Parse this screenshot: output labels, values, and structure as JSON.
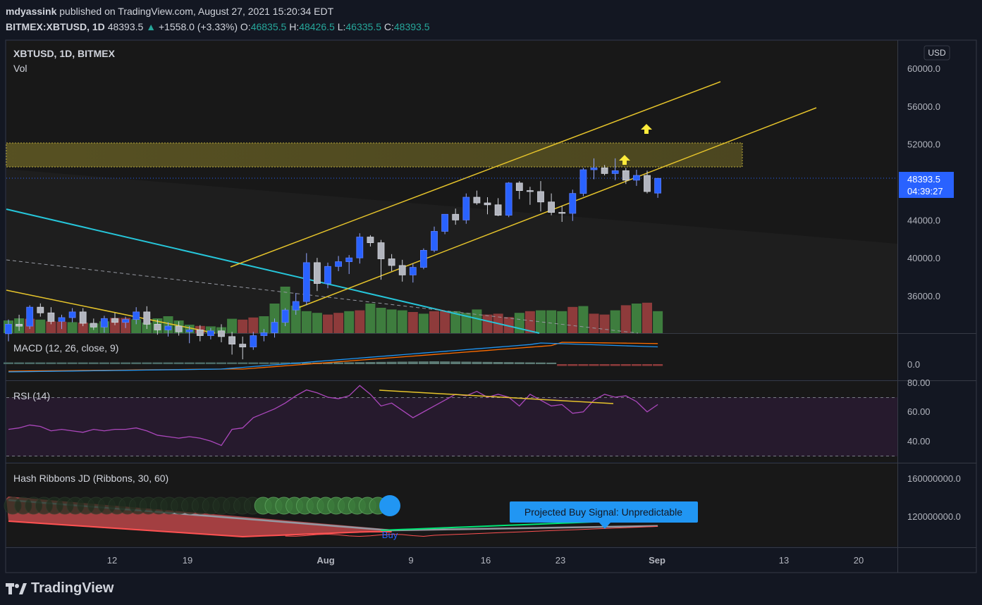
{
  "header": {
    "author": "mdyassink",
    "published": "published on TradingView.com, August 27, 2021 15:20:34 EDT",
    "symbol": "BITMEX:XBTUSD, 1D",
    "last": "48393.5",
    "change": "+1558.0 (+3.33%)",
    "o_label": "O:",
    "o": "46835.5",
    "h_label": "H:",
    "h": "48426.5",
    "l_label": "L:",
    "l": "46335.5",
    "c_label": "C:",
    "c": "48393.5"
  },
  "panes": {
    "main": {
      "title": "XBTUSD, 1D, BITMEX",
      "sub": "Vol"
    },
    "macd": {
      "title": "MACD (12, 26, close, 9)"
    },
    "rsi": {
      "title": "RSI (14)"
    },
    "hash": {
      "title": "Hash Ribbons JD (Ribbons, 30, 60)"
    }
  },
  "currency": "USD",
  "price_label": {
    "value": "48393.5",
    "countdown": "04:39:27"
  },
  "signal_label": "Projected Buy Signal: Unpredictable",
  "buy_label": "Buy",
  "brand": "TradingView",
  "colors": {
    "up": "#2962ff",
    "down": "#b2b5be",
    "vol_up": "#3e7d3e",
    "vol_down": "#8e3b3b",
    "channel": "#e6c42b",
    "cyan": "#26c6da",
    "rsi": "#ab47bc",
    "macd": "#2196f3",
    "signal": "#ff6d00",
    "zone": "#6b6424",
    "arrow": "#ffeb3b"
  },
  "chart_data": {
    "type": "candlestick",
    "x_ticks": [
      "12",
      "19",
      "Aug",
      "9",
      "16",
      "23",
      "Sep",
      "13",
      "20"
    ],
    "y_ticks": [
      "60000.0",
      "56000.0",
      "52000.0",
      "48000.0",
      "44000.0",
      "40000.0",
      "36000.0"
    ],
    "macd_ticks": [
      "0.0"
    ],
    "rsi_ticks": [
      "80.00",
      "60.00",
      "40.00"
    ],
    "hash_ticks": [
      "160000000.0",
      "120000000.0"
    ],
    "candles": [
      [
        32000,
        33500,
        31200,
        33000
      ],
      [
        33000,
        34000,
        32300,
        32800
      ],
      [
        32800,
        35000,
        32500,
        34800
      ],
      [
        34800,
        35200,
        33800,
        34200
      ],
      [
        34200,
        34800,
        33000,
        33300
      ],
      [
        33300,
        34000,
        32500,
        33700
      ],
      [
        33700,
        34700,
        33200,
        34300
      ],
      [
        34300,
        34700,
        32800,
        33100
      ],
      [
        33100,
        33600,
        32400,
        32700
      ],
      [
        32700,
        33900,
        32100,
        33600
      ],
      [
        33600,
        34200,
        32900,
        33200
      ],
      [
        33200,
        33800,
        32600,
        33500
      ],
      [
        33500,
        34800,
        33000,
        34300
      ],
      [
        34300,
        34900,
        32500,
        33000
      ],
      [
        33000,
        33500,
        31900,
        32400
      ],
      [
        32400,
        33200,
        31700,
        32800
      ],
      [
        32800,
        33300,
        31800,
        32200
      ],
      [
        32200,
        32800,
        31000,
        32400
      ],
      [
        32400,
        32900,
        31200,
        31800
      ],
      [
        31800,
        32600,
        31400,
        32300
      ],
      [
        32300,
        33000,
        31100,
        31700
      ],
      [
        31700,
        32200,
        29800,
        30900
      ],
      [
        30900,
        31700,
        29300,
        30600
      ],
      [
        30600,
        32200,
        30300,
        31800
      ],
      [
        31800,
        32500,
        31200,
        32100
      ],
      [
        32100,
        33600,
        31600,
        33200
      ],
      [
        33200,
        34700,
        32800,
        34500
      ],
      [
        34500,
        36300,
        34000,
        35400
      ],
      [
        35400,
        40500,
        35000,
        39500
      ],
      [
        39500,
        40000,
        36500,
        37300
      ],
      [
        37300,
        39500,
        36800,
        39100
      ],
      [
        39100,
        40200,
        38600,
        39600
      ],
      [
        39600,
        40300,
        38300,
        40000
      ],
      [
        40000,
        42600,
        39400,
        42200
      ],
      [
        42200,
        42400,
        41200,
        41600
      ],
      [
        41600,
        41900,
        37700,
        39900
      ],
      [
        39900,
        40400,
        38600,
        39200
      ],
      [
        39200,
        39800,
        37500,
        38200
      ],
      [
        38200,
        39400,
        37400,
        39000
      ],
      [
        39000,
        41000,
        38800,
        40800
      ],
      [
        40800,
        43300,
        40600,
        42800
      ],
      [
        42800,
        44600,
        42500,
        44600
      ],
      [
        44600,
        45200,
        43500,
        44000
      ],
      [
        44000,
        46800,
        43600,
        46400
      ],
      [
        46400,
        47100,
        45600,
        45800
      ],
      [
        45800,
        46400,
        44600,
        45600
      ],
      [
        45600,
        46300,
        44400,
        44500
      ],
      [
        44500,
        48000,
        44300,
        47900
      ],
      [
        47900,
        48100,
        46200,
        47100
      ],
      [
        47100,
        47500,
        45600,
        47000
      ],
      [
        47000,
        48100,
        44900,
        45900
      ],
      [
        45900,
        46800,
        44500,
        44800
      ],
      [
        44800,
        45500,
        43800,
        44700
      ],
      [
        44700,
        47200,
        43900,
        46800
      ],
      [
        46800,
        49500,
        46500,
        49300
      ],
      [
        49300,
        50500,
        48300,
        49500
      ],
      [
        49500,
        49800,
        48700,
        48900
      ],
      [
        48900,
        50500,
        48200,
        49200
      ],
      [
        49200,
        49500,
        47800,
        48200
      ],
      [
        48200,
        49300,
        47600,
        48700
      ],
      [
        48700,
        49200,
        46800,
        47000
      ],
      [
        46835,
        48426,
        46335,
        48393
      ]
    ],
    "volume": [
      [
        "up",
        3
      ],
      [
        "up",
        3.5
      ],
      [
        "down",
        3.4
      ],
      [
        "up",
        3.2
      ],
      [
        "down",
        2.8
      ],
      [
        "down",
        2.7
      ],
      [
        "up",
        2.6
      ],
      [
        "down",
        2.5
      ],
      [
        "up",
        2.3
      ],
      [
        "up",
        2.8
      ],
      [
        "down",
        3.6
      ],
      [
        "down",
        3.6
      ],
      [
        "up",
        3.3
      ],
      [
        "up",
        2.5
      ],
      [
        "up",
        3.5
      ],
      [
        "up",
        4
      ],
      [
        "up",
        3
      ],
      [
        "up",
        2
      ],
      [
        "down",
        1.7
      ],
      [
        "up",
        1.6
      ],
      [
        "up",
        1.4
      ],
      [
        "up",
        3.4
      ],
      [
        "down",
        3.2
      ],
      [
        "down",
        3.7
      ],
      [
        "up",
        4
      ],
      [
        "up",
        7
      ],
      [
        "up",
        11
      ],
      [
        "up",
        6.5
      ],
      [
        "up",
        5.2
      ],
      [
        "up",
        4.8
      ],
      [
        "down",
        4.4
      ],
      [
        "down",
        4.8
      ],
      [
        "up",
        5.2
      ],
      [
        "down",
        5.4
      ],
      [
        "up",
        7
      ],
      [
        "up",
        6
      ],
      [
        "up",
        5.6
      ],
      [
        "up",
        5.4
      ],
      [
        "down",
        5
      ],
      [
        "up",
        4.6
      ],
      [
        "down",
        5.2
      ],
      [
        "down",
        5.2
      ],
      [
        "up",
        5.2
      ],
      [
        "up",
        4.8
      ],
      [
        "up",
        5.6
      ],
      [
        "down",
        4.4
      ],
      [
        "down",
        4.6
      ],
      [
        "down",
        3.8
      ],
      [
        "up",
        4.8
      ],
      [
        "down",
        5.2
      ],
      [
        "up",
        5.4
      ],
      [
        "up",
        5.4
      ],
      [
        "up",
        5.2
      ],
      [
        "down",
        6.2
      ],
      [
        "up",
        6.4
      ],
      [
        "down",
        4.6
      ],
      [
        "down",
        4.4
      ],
      [
        "up",
        5.4
      ],
      [
        "down",
        6.6
      ],
      [
        "up",
        7
      ],
      [
        "down",
        7.2
      ],
      [
        "up",
        5.2
      ]
    ],
    "rsi": [
      48,
      49,
      51,
      50,
      47,
      48,
      47,
      46,
      48,
      47,
      48,
      48,
      49,
      47,
      44,
      43,
      42,
      43,
      42,
      40,
      37,
      48,
      49,
      56,
      59,
      62,
      66,
      71,
      75,
      73,
      70,
      69,
      71,
      78,
      72,
      64,
      66,
      61,
      56,
      60,
      64,
      68,
      72,
      71,
      74,
      70,
      72,
      70,
      64,
      72,
      68,
      64,
      65,
      59,
      60,
      68,
      72,
      70,
      71,
      67,
      60,
      65
    ]
  }
}
